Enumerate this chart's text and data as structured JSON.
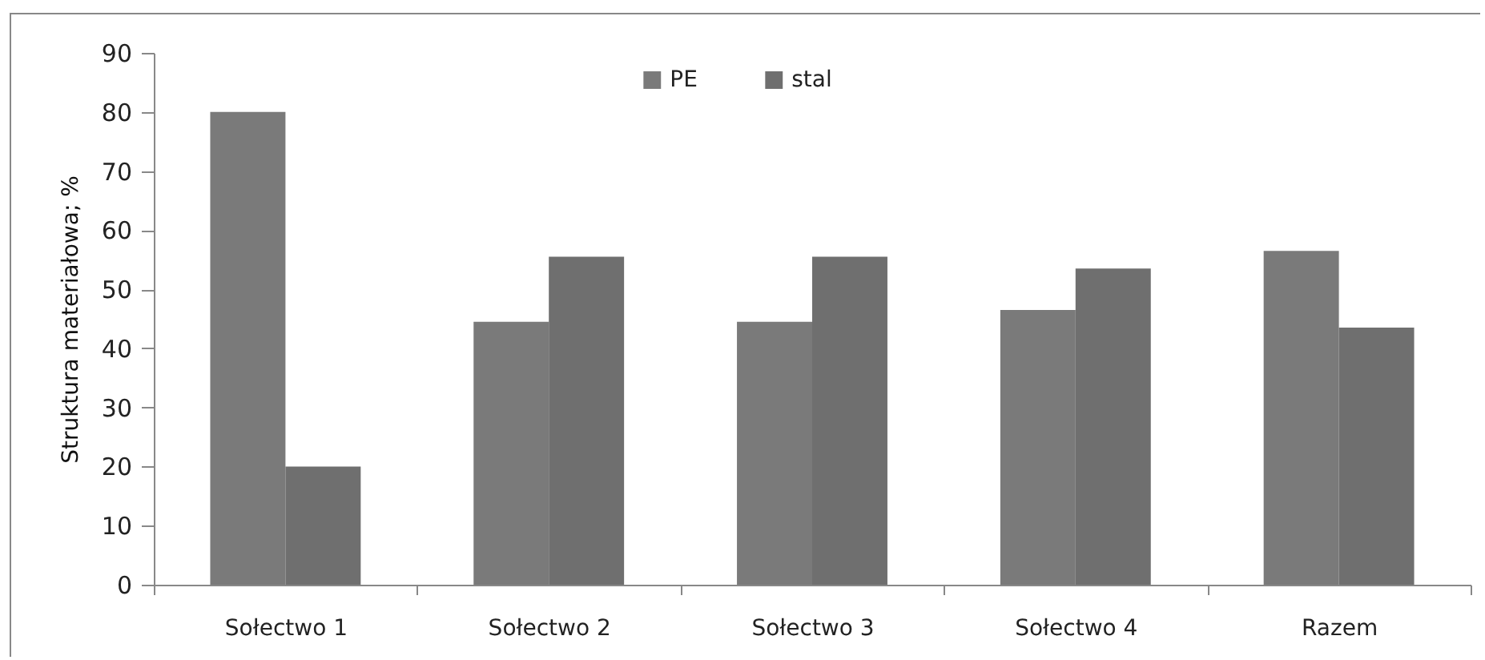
{
  "chart_data": {
    "type": "bar",
    "ylabel": "Struktura materiałowa; %",
    "categories": [
      "Sołectwo 1",
      "Sołectwo 2",
      "Sołectwo 3",
      "Sołectwo 4",
      "Razem"
    ],
    "series": [
      {
        "name": "PE",
        "color": "#7a7a7a",
        "values": [
          80,
          44.5,
          44.5,
          46.5,
          56.5
        ]
      },
      {
        "name": "stal",
        "color": "#6f6f6f",
        "values": [
          20,
          55.5,
          55.5,
          53.5,
          43.5
        ]
      }
    ],
    "ylim": [
      0,
      90
    ],
    "yticks": [
      0,
      10,
      20,
      30,
      40,
      50,
      60,
      70,
      80,
      90
    ],
    "grid": false,
    "legend": "top"
  }
}
